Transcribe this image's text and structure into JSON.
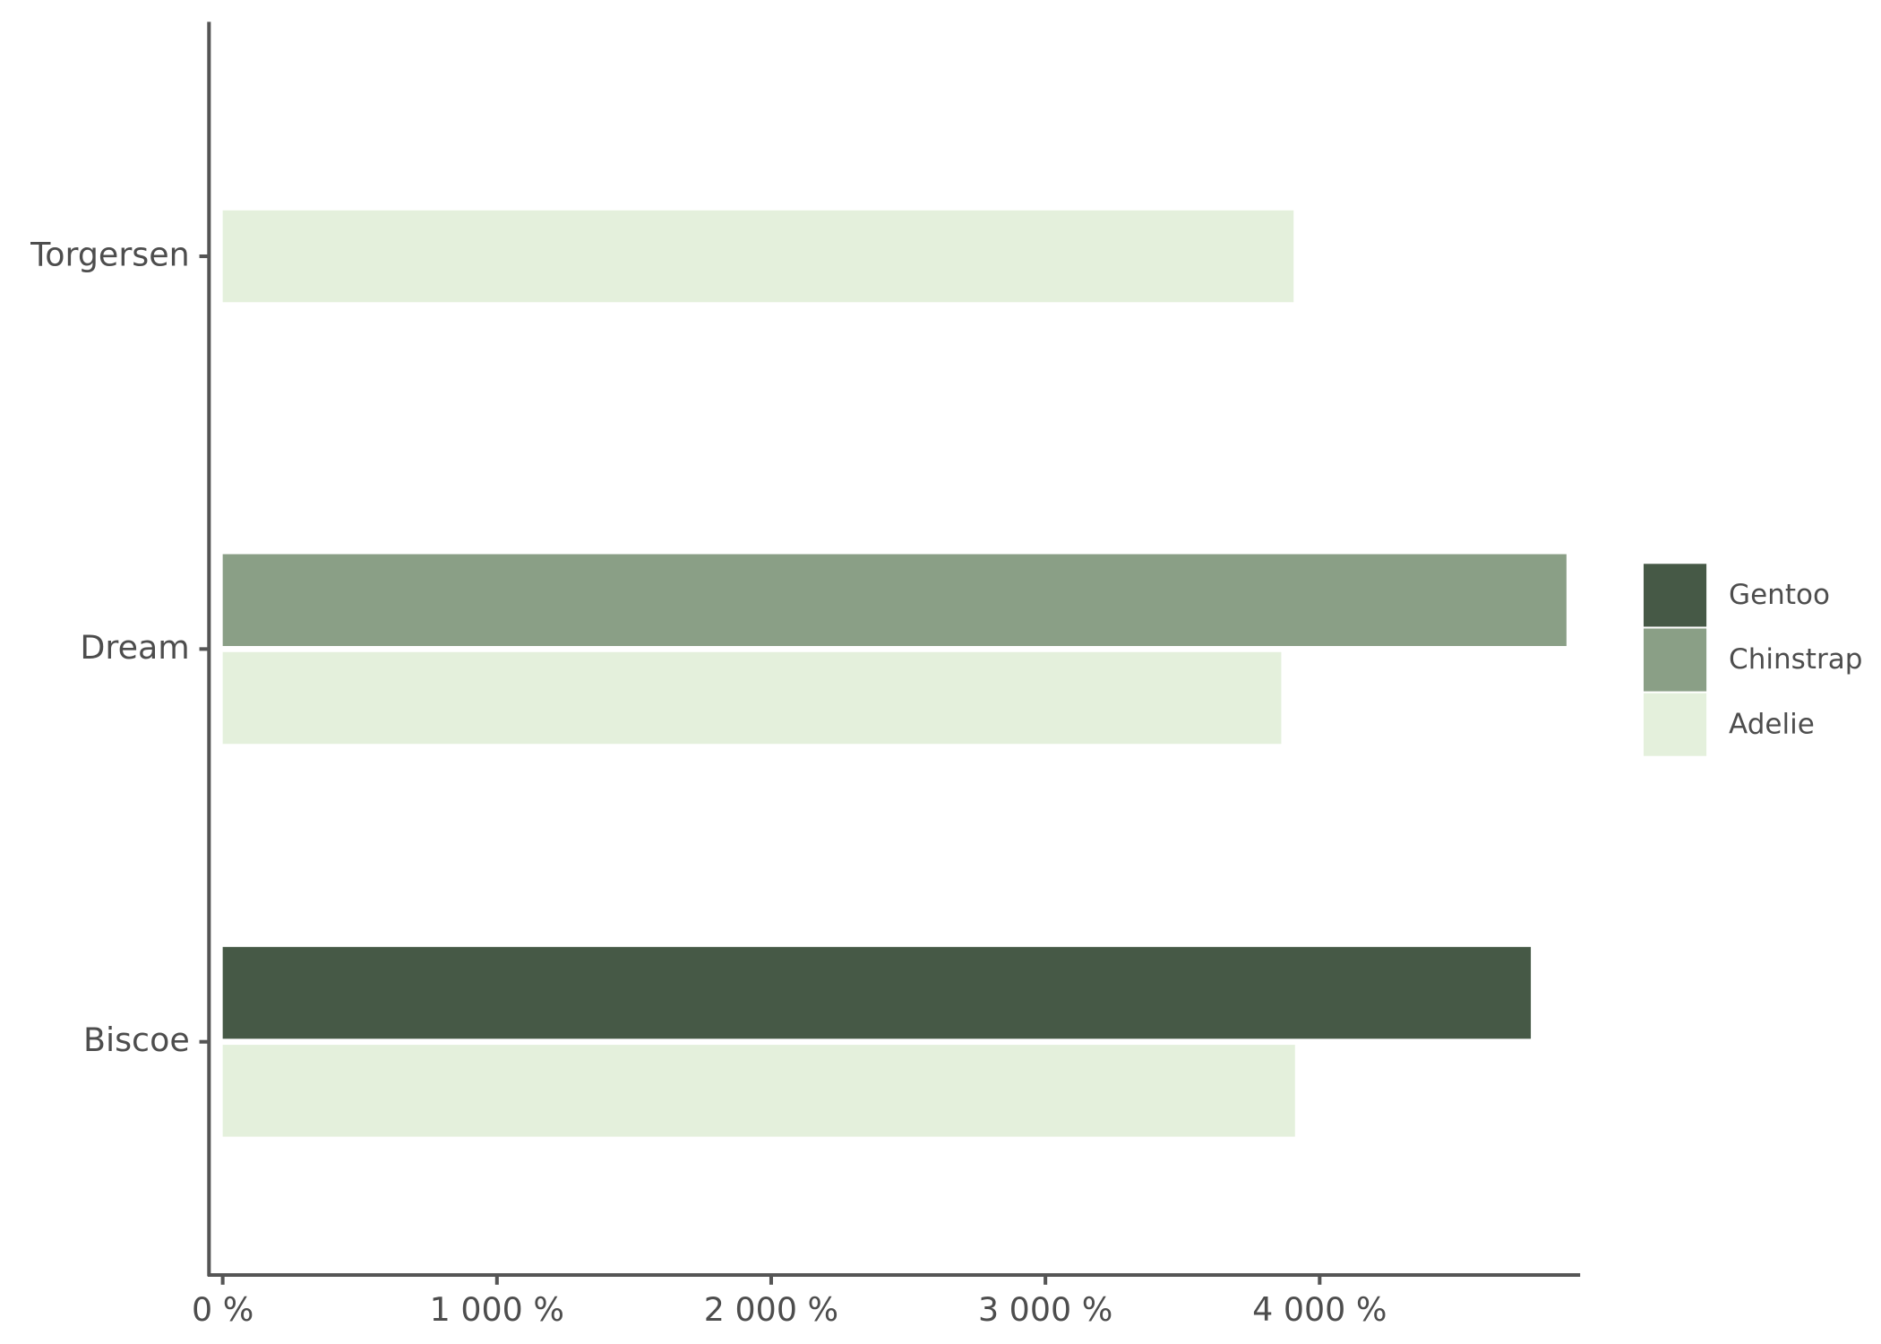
{
  "chart_data": {
    "type": "bar",
    "orientation": "horizontal",
    "categories": [
      "Biscoe",
      "Dream",
      "Torgersen"
    ],
    "series": [
      {
        "name": "Gentoo",
        "color": "#465946",
        "values": [
          4770,
          null,
          null
        ]
      },
      {
        "name": "Chinstrap",
        "color": "#8a9f86",
        "values": [
          null,
          4900,
          null
        ]
      },
      {
        "name": "Adelie",
        "color": "#e4f0dc",
        "values": [
          3910,
          3860,
          3905
        ]
      }
    ],
    "xlim": [
      -50,
      4950
    ],
    "xticks": [
      {
        "value": 0,
        "label": "0 %"
      },
      {
        "value": 1000,
        "label": "1 000 %"
      },
      {
        "value": 2000,
        "label": "2 000 %"
      },
      {
        "value": 3000,
        "label": "3 000 %"
      },
      {
        "value": 4000,
        "label": "4 000 %"
      }
    ],
    "grid": false,
    "legend": "right"
  }
}
